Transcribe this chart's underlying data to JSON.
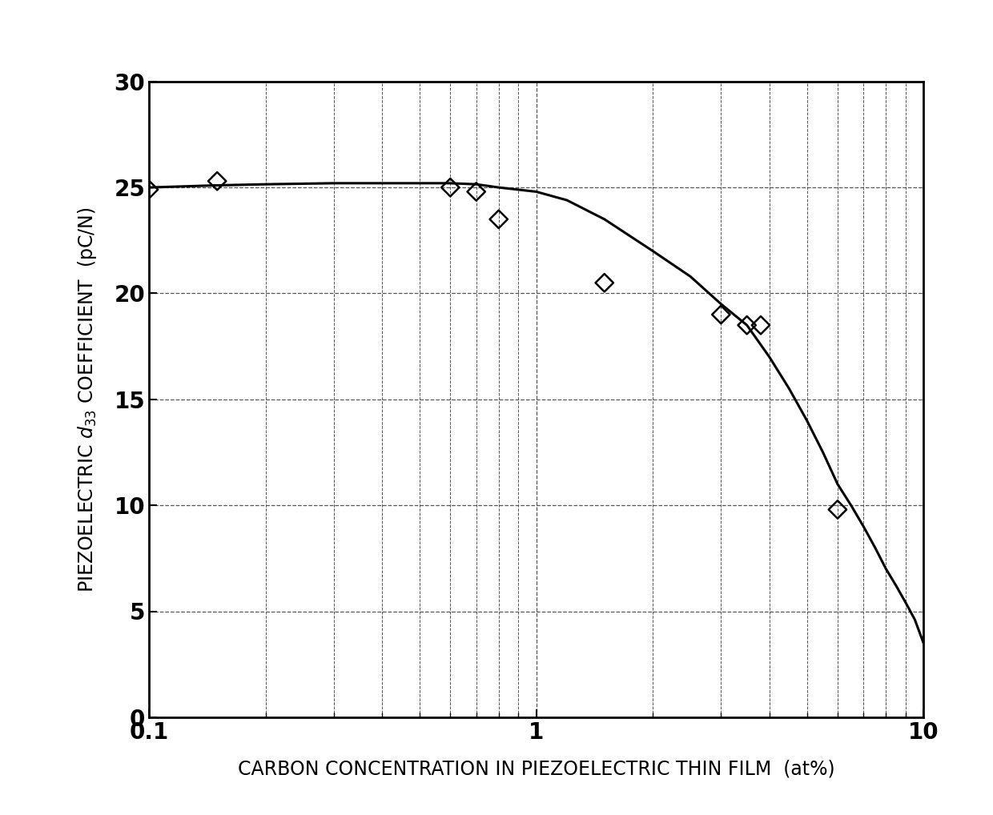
{
  "scatter_x": [
    0.1,
    0.15,
    0.6,
    0.7,
    0.8,
    1.5,
    3.0,
    3.5,
    3.8,
    6.0
  ],
  "scatter_y": [
    24.9,
    25.3,
    25.0,
    24.8,
    23.5,
    20.5,
    19.0,
    18.5,
    18.5,
    9.8
  ],
  "curve_x": [
    0.1,
    0.15,
    0.2,
    0.3,
    0.4,
    0.5,
    0.6,
    0.7,
    0.8,
    1.0,
    1.2,
    1.5,
    2.0,
    2.5,
    3.0,
    3.5,
    4.0,
    4.5,
    5.0,
    5.5,
    6.0,
    6.5,
    7.0,
    7.5,
    8.0,
    8.5,
    9.0,
    9.5,
    10.0
  ],
  "curve_y": [
    25.0,
    25.1,
    25.15,
    25.2,
    25.2,
    25.2,
    25.2,
    25.15,
    25.0,
    24.8,
    24.4,
    23.5,
    22.0,
    20.8,
    19.5,
    18.5,
    17.0,
    15.5,
    14.0,
    12.5,
    11.0,
    10.0,
    9.0,
    8.0,
    7.0,
    6.2,
    5.4,
    4.6,
    3.5
  ],
  "xlim": [
    0.1,
    10
  ],
  "ylim": [
    0,
    30
  ],
  "yticks": [
    0,
    5,
    10,
    15,
    20,
    25,
    30
  ],
  "xlabel": "CARBON CONCENTRATION IN PIEZOELECTRIC THIN FILM  (at%)",
  "ylabel": "PIEZOELECTRIC $d_{33}$ COEFFICIENT  (pC/N)",
  "grid_color": "#555555",
  "line_color": "#000000",
  "marker_color": "#000000",
  "bg_color": "#ffffff",
  "xlabel_fontsize": 17,
  "ylabel_fontsize": 17,
  "tick_fontsize": 20,
  "marker_size": 130,
  "line_width": 2.2
}
